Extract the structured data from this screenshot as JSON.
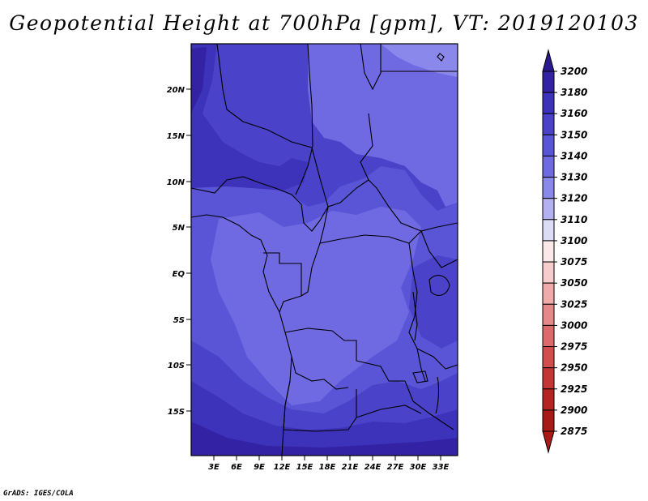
{
  "title": "Geopotential Height at 700hPa [gpm], VT: 2019120103",
  "credit": "GrADS: IGES/COLA",
  "map": {
    "lat_labels": [
      "20N",
      "15N",
      "10N",
      "5N",
      "EQ",
      "5S",
      "10S",
      "15S"
    ],
    "lon_labels": [
      "3E",
      "6E",
      "9E",
      "12E",
      "15E",
      "18E",
      "21E",
      "24E",
      "27E",
      "30E",
      "33E"
    ]
  },
  "colorbar": {
    "levels": [
      {
        "label": "3200",
        "color": "#2a1a8e"
      },
      {
        "label": "3180",
        "color": "#3322a4"
      },
      {
        "label": "3160",
        "color": "#3d33bb"
      },
      {
        "label": "3150",
        "color": "#4a43c9"
      },
      {
        "label": "3140",
        "color": "#5a55d6"
      },
      {
        "label": "3130",
        "color": "#6f6ae2"
      },
      {
        "label": "3120",
        "color": "#8b88ec"
      },
      {
        "label": "3110",
        "color": "#b3b1f2"
      },
      {
        "label": "3100",
        "color": "#dcdcf7"
      },
      {
        "label": "3075",
        "color": "#fbe9e9"
      },
      {
        "label": "3050",
        "color": "#f6cccc"
      },
      {
        "label": "3025",
        "color": "#f0aaa9"
      },
      {
        "label": "3000",
        "color": "#e68888"
      },
      {
        "label": "2975",
        "color": "#dd6a6a"
      },
      {
        "label": "2950",
        "color": "#d24d4c"
      },
      {
        "label": "2925",
        "color": "#c43634"
      },
      {
        "label": "2900",
        "color": "#b62421"
      },
      {
        "label": "2875",
        "color": "#a81a16"
      }
    ]
  }
}
